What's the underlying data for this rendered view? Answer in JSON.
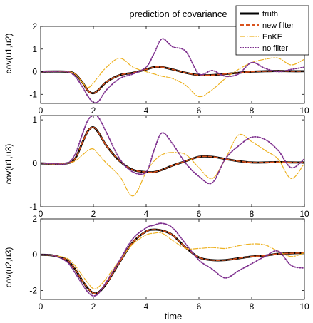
{
  "chart_data": {
    "type": "line",
    "title": "prediction of covariance",
    "xlabel": "time",
    "legend": {
      "placement": "top-right",
      "entries": [
        "truth",
        "new filter",
        "EnKF",
        "no filter"
      ]
    },
    "colors": {
      "truth": "#000000",
      "new filter": "#d9531e",
      "EnKF": "#edb120",
      "no filter": "#7e2f8e"
    },
    "panels": [
      {
        "ylabel": "cov(u1,u2)",
        "xlim": [
          0,
          10
        ],
        "ylim": [
          -1.4,
          2
        ],
        "xticks": [
          "0",
          "2",
          "4",
          "6",
          "8",
          "10"
        ],
        "yticks": [
          {
            "v": -1,
            "label": "-1"
          },
          {
            "v": 0,
            "label": "0"
          },
          {
            "v": 1,
            "label": "1"
          },
          {
            "v": 2,
            "label": "2"
          }
        ],
        "x": [
          0,
          0.5,
          1,
          1.3,
          1.6,
          1.8,
          2,
          2.2,
          2.5,
          3,
          3.5,
          4,
          4.3,
          4.6,
          5,
          5.5,
          6,
          6.5,
          7,
          7.5,
          8,
          8.5,
          9,
          9.5,
          10
        ],
        "series": [
          {
            "name": "truth",
            "values": [
              0,
              0.01,
              0,
              -0.1,
              -0.5,
              -0.85,
              -0.95,
              -0.8,
              -0.45,
              -0.15,
              -0.05,
              0.1,
              0.2,
              0.2,
              0.1,
              -0.05,
              -0.15,
              -0.15,
              -0.1,
              -0.05,
              0,
              0.02,
              0.03,
              0.02,
              0.02
            ]
          },
          {
            "name": "new filter",
            "values": [
              0,
              0.01,
              0,
              -0.1,
              -0.5,
              -0.85,
              -0.95,
              -0.8,
              -0.45,
              -0.15,
              -0.05,
              0.1,
              0.2,
              0.2,
              0.1,
              -0.05,
              -0.15,
              -0.15,
              -0.1,
              -0.05,
              0,
              0.02,
              0.03,
              0.02,
              0.02
            ]
          },
          {
            "name": "EnKF",
            "values": [
              0,
              0.02,
              0,
              -0.1,
              -0.5,
              -0.7,
              -0.5,
              -0.2,
              0.2,
              0.6,
              0.2,
              0.0,
              -0.1,
              -0.2,
              -0.3,
              -0.6,
              -1.1,
              -0.8,
              -0.3,
              0.1,
              0.4,
              0.55,
              0.6,
              0.3,
              0.55
            ]
          },
          {
            "name": "no filter",
            "values": [
              0,
              0.01,
              0,
              -0.2,
              -0.7,
              -1.1,
              -1.35,
              -1.3,
              -0.8,
              -0.3,
              -0.1,
              0.2,
              0.8,
              1.45,
              1.1,
              0.9,
              -0.1,
              0.05,
              -0.2,
              -0.1,
              0.4,
              0.15,
              0.0,
              0.1,
              0.2
            ]
          }
        ]
      },
      {
        "ylabel": "cov(u1,u3)",
        "xlim": [
          0,
          10
        ],
        "ylim": [
          -1,
          1.1
        ],
        "xticks": [
          "0",
          "2",
          "4",
          "6",
          "8",
          "10"
        ],
        "yticks": [
          {
            "v": -1,
            "label": "-1"
          },
          {
            "v": 0,
            "label": "0"
          },
          {
            "v": 1,
            "label": "1"
          }
        ],
        "x": [
          0,
          0.5,
          1,
          1.3,
          1.6,
          1.8,
          2,
          2.2,
          2.5,
          3,
          3.5,
          4,
          4.3,
          4.6,
          5,
          5.5,
          6,
          6.5,
          7,
          7.5,
          8,
          8.5,
          9,
          9.5,
          10
        ],
        "series": [
          {
            "name": "truth",
            "values": [
              0,
              -0.01,
              0,
              0.1,
              0.5,
              0.75,
              0.83,
              0.7,
              0.4,
              0.05,
              -0.15,
              -0.2,
              -0.2,
              -0.15,
              -0.05,
              0.05,
              0.15,
              0.15,
              0.1,
              0.05,
              0.02,
              0.02,
              0.03,
              0.02,
              0.02
            ]
          },
          {
            "name": "new filter",
            "values": [
              0,
              -0.01,
              0,
              0.1,
              0.5,
              0.75,
              0.83,
              0.7,
              0.4,
              0.05,
              -0.15,
              -0.2,
              -0.2,
              -0.15,
              -0.05,
              0.05,
              0.15,
              0.15,
              0.1,
              0.05,
              0.02,
              0.02,
              0.03,
              0.02,
              0.02
            ]
          },
          {
            "name": "EnKF",
            "values": [
              0,
              -0.02,
              0,
              0.05,
              0.2,
              0.3,
              0.33,
              0.2,
              0.0,
              -0.3,
              -0.75,
              -0.2,
              0.05,
              0.2,
              0.25,
              0.2,
              -0.1,
              -0.35,
              0.1,
              0.65,
              0.5,
              0.3,
              0.1,
              -0.35,
              0.0
            ]
          },
          {
            "name": "no filter",
            "values": [
              0,
              -0.01,
              0,
              0.2,
              0.7,
              1.0,
              1.1,
              1.05,
              0.7,
              0.1,
              -0.2,
              -0.2,
              0.3,
              0.7,
              0.45,
              0.0,
              -0.3,
              -0.45,
              0.1,
              0.4,
              0.6,
              0.55,
              0.3,
              -0.1,
              0.1
            ]
          }
        ]
      },
      {
        "ylabel": "cov(u2,u3)",
        "xlim": [
          0,
          10
        ],
        "ylim": [
          -2.5,
          2
        ],
        "xticks": [
          "0",
          "2",
          "4",
          "6",
          "8",
          "10"
        ],
        "yticks": [
          {
            "v": -2,
            "label": "-2"
          },
          {
            "v": 0,
            "label": "0"
          },
          {
            "v": 2,
            "label": "2"
          }
        ],
        "x": [
          0,
          0.5,
          1,
          1.3,
          1.6,
          1.8,
          2,
          2.2,
          2.5,
          3,
          3.5,
          4,
          4.3,
          4.6,
          5,
          5.5,
          6,
          6.5,
          7,
          7.5,
          8,
          8.5,
          9,
          9.5,
          10
        ],
        "series": [
          {
            "name": "truth",
            "values": [
              0,
              -0.05,
              -0.3,
              -0.8,
              -1.5,
              -1.9,
              -2.15,
              -2.1,
              -1.6,
              -0.4,
              0.7,
              1.3,
              1.4,
              1.35,
              1.1,
              0.4,
              -0.15,
              -0.3,
              -0.3,
              -0.2,
              -0.1,
              -0.05,
              0.05,
              0.08,
              0.1
            ]
          },
          {
            "name": "new filter",
            "values": [
              0,
              -0.05,
              -0.3,
              -0.8,
              -1.5,
              -1.9,
              -2.15,
              -2.1,
              -1.6,
              -0.4,
              0.7,
              1.3,
              1.4,
              1.35,
              1.1,
              0.4,
              -0.15,
              -0.3,
              -0.3,
              -0.2,
              -0.1,
              -0.05,
              0.05,
              0.08,
              0.1
            ]
          },
          {
            "name": "EnKF",
            "values": [
              0,
              -0.05,
              -0.2,
              -0.6,
              -1.2,
              -1.6,
              -1.9,
              -1.8,
              -1.3,
              -0.3,
              0.6,
              1.1,
              1.2,
              1.2,
              0.8,
              0.35,
              0.35,
              0.4,
              0.35,
              0.5,
              0.6,
              0.55,
              0.2,
              -0.1,
              0.1
            ]
          },
          {
            "name": "no filter",
            "values": [
              0,
              -0.05,
              -0.4,
              -1.0,
              -1.7,
              -2.1,
              -2.3,
              -2.15,
              -1.5,
              -0.3,
              0.9,
              1.5,
              1.65,
              1.75,
              1.5,
              0.6,
              -0.3,
              -0.8,
              -1.3,
              -0.9,
              -0.5,
              -0.1,
              0.2,
              -0.6,
              -0.75
            ]
          }
        ]
      }
    ]
  }
}
